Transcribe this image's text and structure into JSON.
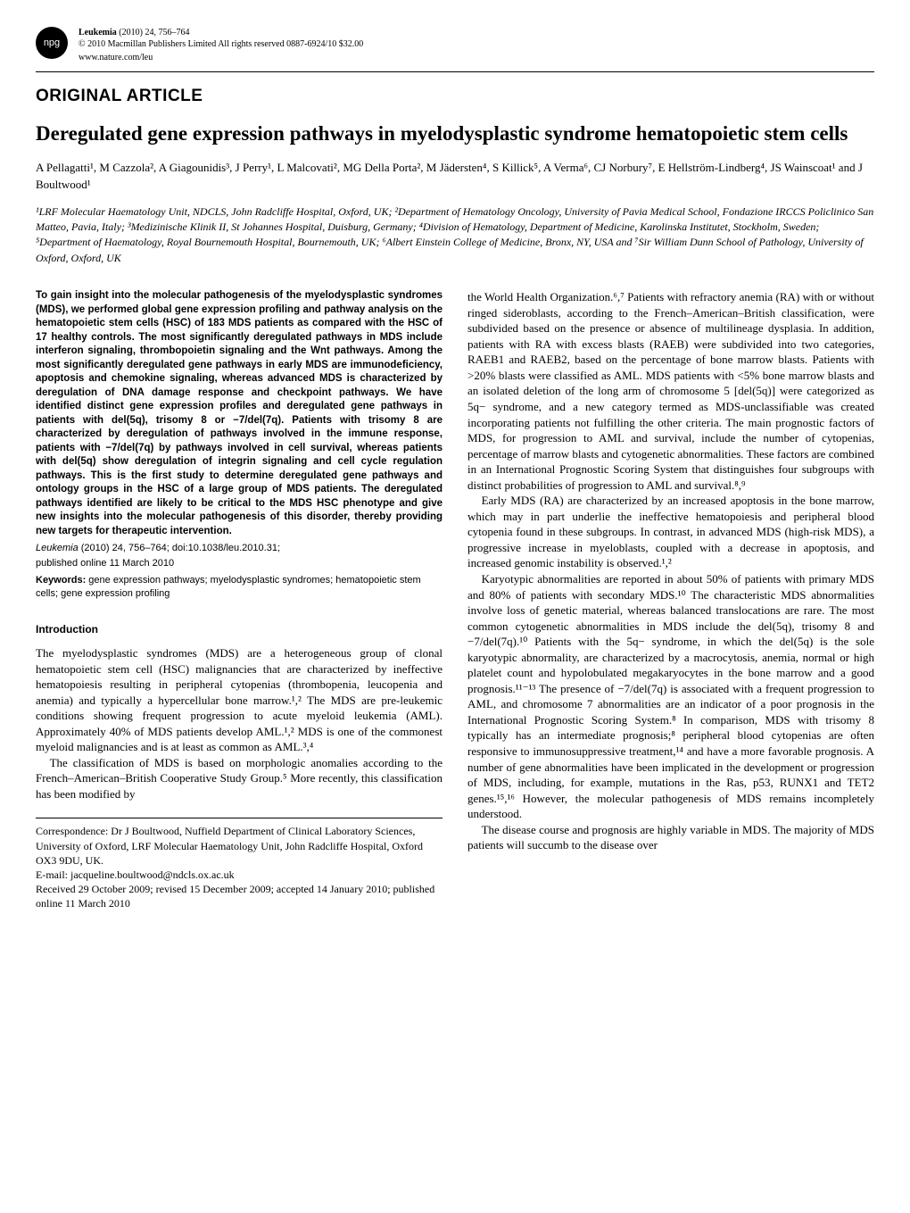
{
  "header": {
    "badge": "npg",
    "journal": "Leukemia",
    "year_vol_pages": "(2010) 24, 756–764",
    "copyright": "© 2010 Macmillan Publishers Limited  All rights reserved 0887-6924/10 $32.00",
    "url": "www.nature.com/leu"
  },
  "article_type": "ORIGINAL ARTICLE",
  "title": "Deregulated gene expression pathways in myelodysplastic syndrome hematopoietic stem cells",
  "authors": "A Pellagatti¹, M Cazzola², A Giagounidis³, J Perry¹, L Malcovati², MG Della Porta², M Jädersten⁴, S Killick⁵, A Verma⁶, CJ Norbury⁷, E Hellström-Lindberg⁴, JS Wainscoat¹ and J Boultwood¹",
  "affiliations": "¹LRF Molecular Haematology Unit, NDCLS, John Radcliffe Hospital, Oxford, UK; ²Department of Hematology Oncology, University of Pavia Medical School, Fondazione IRCCS Policlinico San Matteo, Pavia, Italy; ³Medizinische Klinik II, St Johannes Hospital, Duisburg, Germany; ⁴Division of Hematology, Department of Medicine, Karolinska Institutet, Stockholm, Sweden; ⁵Department of Haematology, Royal Bournemouth Hospital, Bournemouth, UK; ⁶Albert Einstein College of Medicine, Bronx, NY, USA and ⁷Sir William Dunn School of Pathology, University of Oxford, Oxford, UK",
  "abstract": "To gain insight into the molecular pathogenesis of the myelodysplastic syndromes (MDS), we performed global gene expression profiling and pathway analysis on the hematopoietic stem cells (HSC) of 183 MDS patients as compared with the HSC of 17 healthy controls. The most significantly deregulated pathways in MDS include interferon signaling, thrombopoietin signaling and the Wnt pathways. Among the most significantly deregulated gene pathways in early MDS are immunodeficiency, apoptosis and chemokine signaling, whereas advanced MDS is characterized by deregulation of DNA damage response and checkpoint pathways. We have identified distinct gene expression profiles and deregulated gene pathways in patients with del(5q), trisomy 8 or −7/del(7q). Patients with trisomy 8 are characterized by deregulation of pathways involved in the immune response, patients with −7/del(7q) by pathways involved in cell survival, whereas patients with del(5q) show deregulation of integrin signaling and cell cycle regulation pathways. This is the first study to determine deregulated gene pathways and ontology groups in the HSC of a large group of MDS patients. The deregulated pathways identified are likely to be critical to the MDS HSC phenotype and give new insights into the molecular pathogenesis of this disorder, thereby providing new targets for therapeutic intervention.",
  "citation_journal": "Leukemia",
  "citation_rest": " (2010) 24, 756–764; doi:10.1038/leu.2010.31;",
  "pub_online": "published online 11 March 2010",
  "keywords_label": "Keywords:",
  "keywords_text": " gene expression pathways; myelodysplastic syndromes; hematopoietic stem cells; gene expression profiling",
  "section_intro": "Introduction",
  "left": {
    "p1": "The myelodysplastic syndromes (MDS) are a heterogeneous group of clonal hematopoietic stem cell (HSC) malignancies that are characterized by ineffective hematopoiesis resulting in peripheral cytopenias (thrombopenia, leucopenia and anemia) and typically a hypercellular bone marrow.¹,² The MDS are pre-leukemic conditions showing frequent progression to acute myeloid leukemia (AML). Approximately 40% of MDS patients develop AML.¹,² MDS is one of the commonest myeloid malignancies and is at least as common as AML.³,⁴",
    "p2": "The classification of MDS is based on morphologic anomalies according to the French–American–British Cooperative Study Group.⁵ More recently, this classification has been modified by"
  },
  "correspondence": {
    "text": "Correspondence: Dr J Boultwood, Nuffield Department of Clinical Laboratory Sciences, University of Oxford, LRF Molecular Haematology Unit, John Radcliffe Hospital, Oxford OX3 9DU, UK.",
    "email": "E-mail: jacqueline.boultwood@ndcls.ox.ac.uk",
    "received": "Received 29 October 2009; revised 15 December 2009; accepted 14 January 2010; published online 11 March 2010"
  },
  "right": {
    "p1": "the World Health Organization.⁶,⁷ Patients with refractory anemia (RA) with or without ringed sideroblasts, according to the French–American–British classification, were subdivided based on the presence or absence of multilineage dysplasia. In addition, patients with RA with excess blasts (RAEB) were subdivided into two categories, RAEB1 and RAEB2, based on the percentage of bone marrow blasts. Patients with >20% blasts were classified as AML. MDS patients with <5% bone marrow blasts and an isolated deletion of the long arm of chromosome 5 [del(5q)] were categorized as 5q− syndrome, and a new category termed as MDS-unclassifiable was created incorporating patients not fulfilling the other criteria. The main prognostic factors of MDS, for progression to AML and survival, include the number of cytopenias, percentage of marrow blasts and cytogenetic abnormalities. These factors are combined in an International Prognostic Scoring System that distinguishes four subgroups with distinct probabilities of progression to AML and survival.⁸,⁹",
    "p2": "Early MDS (RA) are characterized by an increased apoptosis in the bone marrow, which may in part underlie the ineffective hematopoiesis and peripheral blood cytopenia found in these subgroups. In contrast, in advanced MDS (high-risk MDS), a progressive increase in myeloblasts, coupled with a decrease in apoptosis, and increased genomic instability is observed.¹,²",
    "p3": "Karyotypic abnormalities are reported in about 50% of patients with primary MDS and 80% of patients with secondary MDS.¹⁰ The characteristic MDS abnormalities involve loss of genetic material, whereas balanced translocations are rare. The most common cytogenetic abnormalities in MDS include the del(5q), trisomy 8 and −7/del(7q).¹⁰ Patients with the 5q− syndrome, in which the del(5q) is the sole karyotypic abnormality, are characterized by a macrocytosis, anemia, normal or high platelet count and hypolobulated megakaryocytes in the bone marrow and a good prognosis.¹¹⁻¹³ The presence of −7/del(7q) is associated with a frequent progression to AML, and chromosome 7 abnormalities are an indicator of a poor prognosis in the International Prognostic Scoring System.⁸ In comparison, MDS with trisomy 8 typically has an intermediate prognosis;⁸ peripheral blood cytopenias are often responsive to immunosuppressive treatment,¹⁴ and have a more favorable prognosis. A number of gene abnormalities have been implicated in the development or progression of MDS, including, for example, mutations in the Ras, p53, RUNX1 and TET2 genes.¹⁵,¹⁶ However, the molecular pathogenesis of MDS remains incompletely understood.",
    "p4": "The disease course and prognosis are highly variable in MDS. The majority of MDS patients will succumb to the disease over"
  }
}
